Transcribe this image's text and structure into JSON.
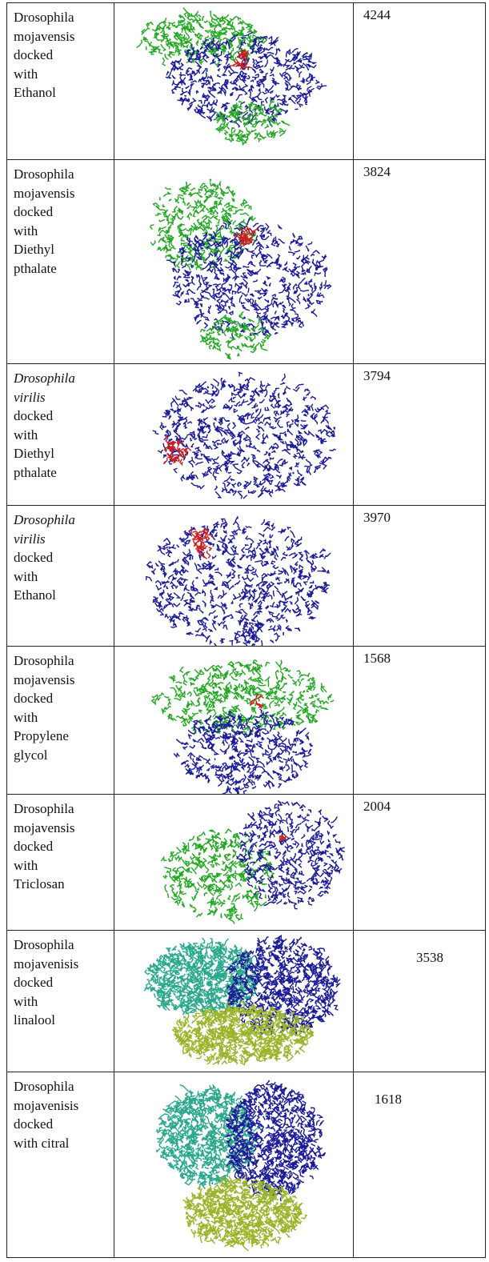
{
  "table": {
    "rows": [
      {
        "species_lines": [
          "Drosophila",
          "mojavensis"
        ],
        "species_italic": false,
        "rest_lines": [
          "docked",
          "with",
          "Ethanol"
        ],
        "score": 4244
      },
      {
        "species_lines": [
          "Drosophila",
          "mojavensis"
        ],
        "species_italic": false,
        "rest_lines": [
          "docked",
          "with",
          "Diethyl",
          "pthalate"
        ],
        "score": 3824
      },
      {
        "species_lines": [
          "Drosophila",
          "virilis"
        ],
        "species_italic": true,
        "rest_lines": [
          "docked",
          "with",
          "Diethyl",
          "pthalate"
        ],
        "score": 3794
      },
      {
        "species_lines": [
          "Drosophila",
          "virilis"
        ],
        "species_italic": true,
        "rest_lines": [
          "docked",
          "with",
          "Ethanol"
        ],
        "score": 3970
      },
      {
        "species_lines": [
          "Drosophila",
          "mojavensis"
        ],
        "species_italic": false,
        "rest_lines": [
          "docked",
          "with",
          "Propylene",
          "glycol"
        ],
        "score": 1568
      },
      {
        "species_lines": [
          "Drosophila",
          "mojavensis"
        ],
        "species_italic": false,
        "rest_lines": [
          "docked",
          "with",
          "Triclosan"
        ],
        "score": 2004
      },
      {
        "species_lines": [
          "Drosophila",
          "mojavenisis"
        ],
        "species_italic": false,
        "rest_lines": [
          "docked",
          "with",
          "linalool"
        ],
        "score": 3538
      },
      {
        "species_lines": [
          "Drosophila",
          "mojavenisis"
        ],
        "species_italic": false,
        "rest_lines": [
          "docked",
          "with citral"
        ],
        "score": 1618
      }
    ]
  }
}
